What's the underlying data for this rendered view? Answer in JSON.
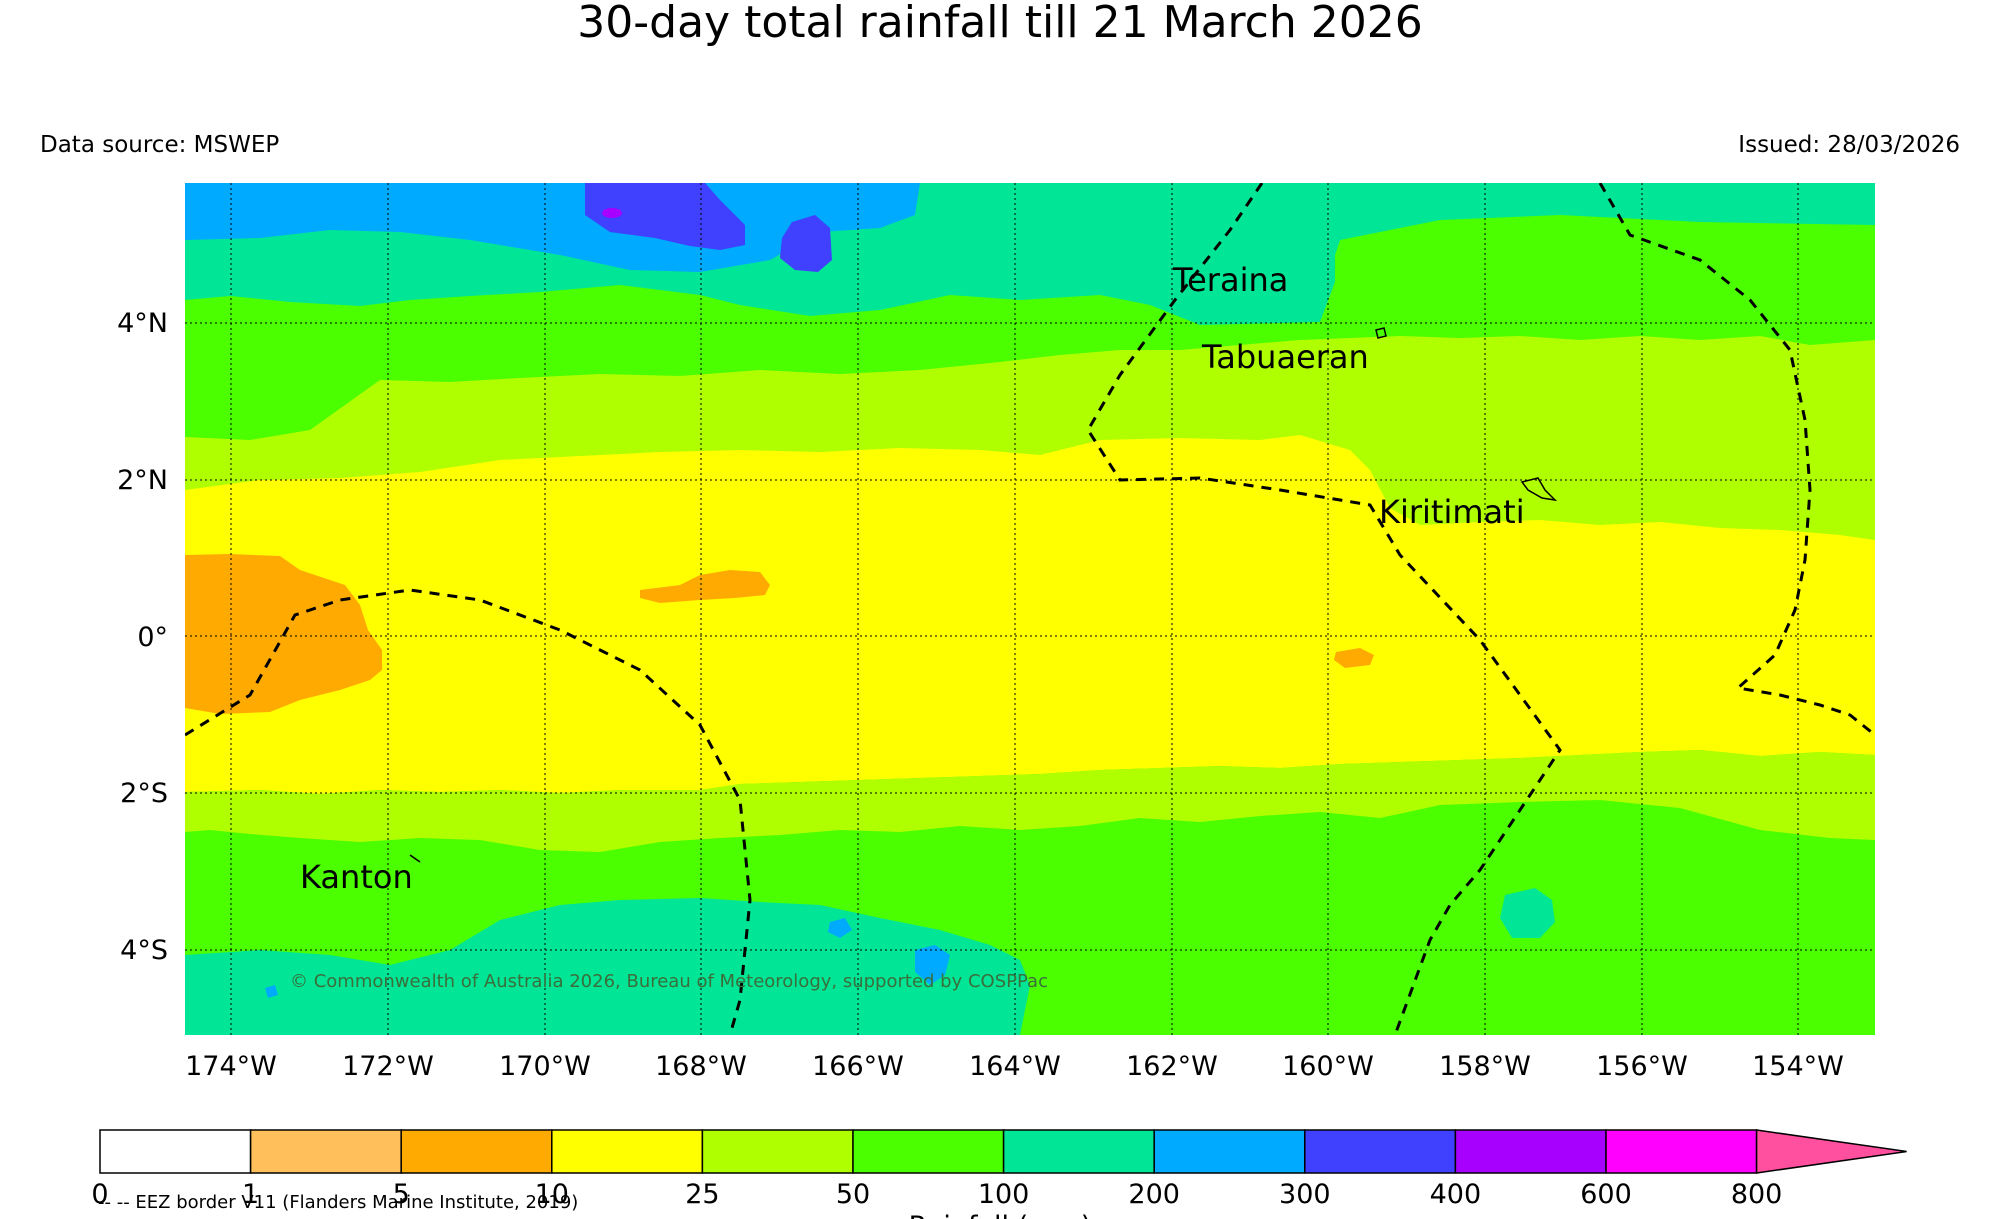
{
  "title": "30-day total rainfall till 21 March 2026",
  "data_source": "Data source: MSWEP",
  "issued": "Issued: 28/03/2026",
  "copyright": "© Commonwealth of Australia 2026, Bureau of Meteorology, supported by COSPPac",
  "eez_note": "-- -- EEZ border V11 (Flanders Marine Institute, 2019)",
  "colorbar_label": "Rainfall (mm)",
  "lat_labels": [
    "4°N",
    "2°N",
    "0°",
    "2°S",
    "4°S"
  ],
  "lon_labels": [
    "174°W",
    "172°W",
    "170°W",
    "168°W",
    "166°W",
    "164°W",
    "162°W",
    "160°W",
    "158°W",
    "156°W",
    "154°W"
  ],
  "places": [
    "Teraina",
    "Tabuaeran",
    "Kiritimati",
    "Kanton"
  ],
  "colorbar": {
    "ticks": [
      "0",
      "1",
      "5",
      "10",
      "25",
      "50",
      "100",
      "200",
      "300",
      "400",
      "600",
      "800"
    ],
    "colors": [
      "#ffffff",
      "#ffbf5a",
      "#ffaa00",
      "#ffff00",
      "#b0ff00",
      "#4cff00",
      "#00e696",
      "#00aaff",
      "#4040ff",
      "#a800ff",
      "#ff00ff",
      "#ff50a0"
    ]
  },
  "map_colors": {
    "c5_10": "#ffaa00",
    "c10_25": "#ffff00",
    "c25_50": "#b0ff00",
    "c50_100": "#4cff00",
    "c100_200": "#00e696",
    "c200_300": "#00aaff",
    "c300_400": "#4040ff",
    "c400_600": "#a800ff"
  }
}
